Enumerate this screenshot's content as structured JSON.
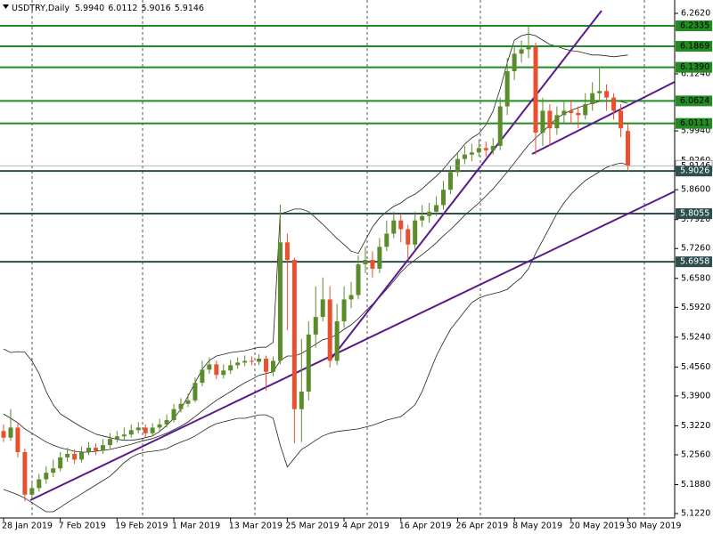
{
  "chart_data": {
    "type": "candlestick",
    "title": "USDTRY,Daily",
    "title_values": [
      "5.9940",
      "6.0112",
      "5.9016",
      "5.9146"
    ],
    "categories": [
      "28 Jan 2019",
      null,
      null,
      null,
      null,
      null,
      null,
      null,
      "7 Feb 2019",
      null,
      null,
      null,
      null,
      null,
      null,
      null,
      "19 Feb 2019",
      null,
      null,
      null,
      null,
      null,
      null,
      null,
      "1 Mar 2019",
      null,
      null,
      null,
      null,
      null,
      null,
      null,
      "13 Mar 2019",
      null,
      null,
      null,
      null,
      null,
      null,
      null,
      "25 Mar 2019",
      null,
      null,
      null,
      null,
      null,
      null,
      null,
      "4 Apr 2019",
      null,
      null,
      null,
      null,
      null,
      null,
      null,
      "16 Apr 2019",
      null,
      null,
      null,
      null,
      null,
      null,
      null,
      "26 Apr 2019",
      null,
      null,
      null,
      null,
      null,
      null,
      null,
      "8 May 2019",
      null,
      null,
      null,
      null,
      null,
      null,
      null,
      "20 May 2019",
      null,
      null,
      null,
      null,
      null,
      null,
      null,
      "30 May 2019"
    ],
    "open": [
      5.31,
      5.295,
      5.318,
      5.262,
      5.165,
      5.18,
      5.2,
      5.215,
      5.225,
      5.25,
      5.258,
      5.245,
      5.262,
      5.272,
      5.265,
      5.278,
      5.292,
      5.298,
      5.302,
      5.312,
      5.318,
      5.305,
      5.318,
      5.325,
      5.335,
      5.36,
      5.372,
      5.38,
      5.42,
      5.45,
      5.462,
      5.438,
      5.448,
      5.46,
      5.466,
      5.47,
      5.468,
      5.475,
      5.445,
      5.47,
      5.74,
      5.7,
      5.36,
      5.4,
      5.53,
      5.57,
      5.61,
      5.47,
      5.56,
      5.61,
      5.62,
      5.69,
      5.7,
      5.68,
      5.73,
      5.76,
      5.79,
      5.77,
      5.735,
      5.79,
      5.8,
      5.81,
      5.825,
      5.86,
      5.9,
      5.93,
      5.94,
      5.945,
      5.955,
      5.95,
      5.96,
      6.05,
      6.13,
      6.17,
      6.18,
      6.185,
      5.99,
      6.04,
      6.0,
      6.03,
      6.04,
      6.035,
      6.03,
      6.055,
      6.08,
      6.085,
      6.07,
      6.04,
      5.994
    ],
    "high": [
      5.325,
      5.36,
      5.33,
      5.27,
      5.195,
      5.212,
      5.23,
      5.245,
      5.262,
      5.272,
      5.268,
      5.275,
      5.285,
      5.282,
      5.292,
      5.305,
      5.31,
      5.318,
      5.325,
      5.33,
      5.325,
      5.328,
      5.338,
      5.348,
      5.372,
      5.385,
      5.395,
      5.432,
      5.47,
      5.478,
      5.47,
      5.462,
      5.472,
      5.478,
      5.482,
      5.48,
      5.485,
      5.482,
      5.48,
      5.826,
      5.76,
      5.705,
      5.52,
      5.56,
      5.64,
      5.66,
      5.64,
      5.6,
      5.64,
      5.65,
      5.71,
      5.73,
      5.72,
      5.75,
      5.79,
      5.81,
      5.805,
      5.78,
      5.81,
      5.825,
      5.83,
      5.845,
      5.88,
      5.915,
      5.945,
      5.96,
      5.965,
      5.975,
      5.97,
      5.978,
      6.07,
      6.16,
      6.19,
      6.2,
      6.232,
      6.195,
      6.07,
      6.055,
      6.05,
      6.06,
      6.065,
      6.05,
      6.08,
      6.105,
      6.14,
      6.1,
      6.08,
      6.055,
      6.0112
    ],
    "low": [
      5.285,
      5.288,
      5.25,
      5.15,
      5.155,
      5.172,
      5.19,
      5.205,
      5.218,
      5.24,
      5.235,
      5.238,
      5.255,
      5.255,
      5.258,
      5.27,
      5.284,
      5.29,
      5.295,
      5.305,
      5.296,
      5.298,
      5.31,
      5.318,
      5.33,
      5.352,
      5.365,
      5.375,
      5.412,
      5.44,
      5.428,
      5.43,
      5.44,
      5.452,
      5.458,
      5.46,
      5.46,
      5.402,
      5.435,
      5.462,
      5.54,
      5.282,
      5.285,
      5.38,
      5.5,
      5.56,
      5.455,
      5.46,
      5.545,
      5.59,
      5.61,
      5.67,
      5.66,
      5.67,
      5.72,
      5.75,
      5.74,
      5.7,
      5.725,
      5.775,
      5.785,
      5.8,
      5.815,
      5.85,
      5.89,
      5.918,
      5.925,
      5.935,
      5.935,
      5.94,
      5.95,
      6.03,
      6.11,
      6.15,
      6.16,
      5.94,
      5.96,
      5.96,
      5.985,
      6.01,
      6.01,
      6.0,
      6.02,
      6.04,
      6.06,
      6.04,
      6.02,
      5.98,
      5.9016
    ],
    "close": [
      5.295,
      5.318,
      5.262,
      5.165,
      5.18,
      5.2,
      5.215,
      5.225,
      5.25,
      5.258,
      5.245,
      5.262,
      5.272,
      5.265,
      5.278,
      5.292,
      5.298,
      5.302,
      5.312,
      5.318,
      5.305,
      5.318,
      5.325,
      5.335,
      5.36,
      5.372,
      5.38,
      5.42,
      5.45,
      5.462,
      5.438,
      5.448,
      5.46,
      5.466,
      5.47,
      5.468,
      5.475,
      5.445,
      5.47,
      5.74,
      5.7,
      5.36,
      5.4,
      5.53,
      5.57,
      5.61,
      5.47,
      5.56,
      5.61,
      5.62,
      5.69,
      5.7,
      5.68,
      5.73,
      5.76,
      5.79,
      5.77,
      5.735,
      5.79,
      5.8,
      5.81,
      5.825,
      5.86,
      5.9,
      5.93,
      5.94,
      5.945,
      5.955,
      5.95,
      5.96,
      6.05,
      6.13,
      6.17,
      6.18,
      6.185,
      5.99,
      6.04,
      6.0,
      6.03,
      6.04,
      6.035,
      6.03,
      6.055,
      6.08,
      6.085,
      6.07,
      6.04,
      6.0,
      5.9146
    ],
    "up_color": "#5b8c2a",
    "down_color": "#e8502f",
    "bollinger": {
      "color": "#222222",
      "upper": [
        5.497,
        5.489,
        5.491,
        5.49,
        5.47,
        5.441,
        5.4,
        5.37,
        5.349,
        5.339,
        5.329,
        5.319,
        5.311,
        5.303,
        5.299,
        5.295,
        5.291,
        5.289,
        5.289,
        5.291,
        5.295,
        5.299,
        5.309,
        5.323,
        5.339,
        5.36,
        5.39,
        5.42,
        5.451,
        5.471,
        5.481,
        5.485,
        5.489,
        5.491,
        5.493,
        5.497,
        5.501,
        5.501,
        5.512,
        5.805,
        5.81,
        5.816,
        5.816,
        5.81,
        5.796,
        5.781,
        5.765,
        5.749,
        5.735,
        5.72,
        5.715,
        5.745,
        5.775,
        5.796,
        5.81,
        5.822,
        5.83,
        5.842,
        5.85,
        5.862,
        5.877,
        5.891,
        5.907,
        5.927,
        5.944,
        5.964,
        5.978,
        5.988,
        6.008,
        6.039,
        6.09,
        6.15,
        6.201,
        6.211,
        6.215,
        6.211,
        6.201,
        6.191,
        6.187,
        6.181,
        6.177,
        6.175,
        6.171,
        6.167,
        6.167,
        6.165,
        6.163,
        6.165,
        6.167
      ],
      "middle": [
        5.349,
        5.339,
        5.329,
        5.315,
        5.305,
        5.295,
        5.285,
        5.278,
        5.272,
        5.268,
        5.264,
        5.262,
        5.262,
        5.264,
        5.266,
        5.268,
        5.272,
        5.276,
        5.28,
        5.285,
        5.289,
        5.293,
        5.299,
        5.305,
        5.313,
        5.321,
        5.331,
        5.343,
        5.356,
        5.368,
        5.38,
        5.39,
        5.4,
        5.41,
        5.42,
        5.428,
        5.437,
        5.441,
        5.445,
        5.471,
        5.481,
        5.481,
        5.487,
        5.497,
        5.508,
        5.518,
        5.522,
        5.53,
        5.542,
        5.552,
        5.566,
        5.583,
        5.599,
        5.615,
        5.633,
        5.652,
        5.672,
        5.688,
        5.7,
        5.712,
        5.725,
        5.739,
        5.755,
        5.769,
        5.785,
        5.802,
        5.816,
        5.83,
        5.846,
        5.862,
        5.881,
        5.901,
        5.921,
        5.942,
        5.962,
        5.978,
        5.992,
        6.008,
        6.023,
        6.033,
        6.041,
        6.047,
        6.053,
        6.057,
        6.061,
        6.063,
        6.063,
        6.061,
        6.057
      ],
      "lower": [
        5.177,
        5.171,
        5.165,
        5.157,
        5.147,
        5.136,
        5.126,
        5.126,
        5.136,
        5.147,
        5.157,
        5.167,
        5.177,
        5.187,
        5.197,
        5.207,
        5.222,
        5.238,
        5.25,
        5.258,
        5.262,
        5.264,
        5.266,
        5.27,
        5.278,
        5.285,
        5.291,
        5.299,
        5.309,
        5.319,
        5.327,
        5.331,
        5.335,
        5.339,
        5.339,
        5.343,
        5.347,
        5.347,
        5.339,
        5.278,
        5.228,
        5.248,
        5.268,
        5.278,
        5.289,
        5.299,
        5.305,
        5.309,
        5.311,
        5.313,
        5.315,
        5.319,
        5.323,
        5.329,
        5.335,
        5.339,
        5.343,
        5.356,
        5.37,
        5.4,
        5.441,
        5.481,
        5.512,
        5.542,
        5.562,
        5.583,
        5.603,
        5.613,
        5.619,
        5.623,
        5.627,
        5.633,
        5.647,
        5.66,
        5.68,
        5.715,
        5.745,
        5.775,
        5.806,
        5.83,
        5.85,
        5.866,
        5.881,
        5.891,
        5.901,
        5.911,
        5.917,
        5.921,
        5.917
      ]
    },
    "levels": [
      {
        "value": 6.2335,
        "color": "#228b22"
      },
      {
        "value": 6.1869,
        "color": "#228b22"
      },
      {
        "value": 6.139,
        "label": "6.1390",
        "color": "#228b22"
      },
      {
        "value": 6.0624,
        "color": "#228b22"
      },
      {
        "value": 6.0111,
        "color": "#228b22"
      },
      {
        "value": 5.9026,
        "color": "#2f4f4f"
      },
      {
        "value": 5.8055,
        "color": "#2f4f4f"
      },
      {
        "value": 5.6958,
        "color": "#2f4f4f"
      }
    ],
    "ylim": [
      5.1119,
      6.2924
    ],
    "yticks": [
      {
        "value": 6.262,
        "label": "6.2620"
      },
      {
        "value": 6.124,
        "label": "6.1240"
      },
      {
        "value": 5.994,
        "label": "5.9940"
      },
      {
        "value": 5.926,
        "label": "5.9260"
      },
      {
        "value": 5.86,
        "label": "5.8600"
      },
      {
        "value": 5.792,
        "label": "5.7920"
      },
      {
        "value": 5.726,
        "label": "5.7260"
      },
      {
        "value": 5.658,
        "label": "5.6580"
      },
      {
        "value": 5.592,
        "label": "5.5920"
      },
      {
        "value": 5.524,
        "label": "5.5240"
      },
      {
        "value": 5.456,
        "label": "5.4560"
      },
      {
        "value": 5.39,
        "label": "5.3900"
      },
      {
        "value": 5.322,
        "label": "5.3220"
      },
      {
        "value": 5.256,
        "label": "5.2560"
      },
      {
        "value": 5.188,
        "label": "5.1880"
      },
      {
        "value": 5.122,
        "label": "5.1220"
      }
    ]
  }
}
